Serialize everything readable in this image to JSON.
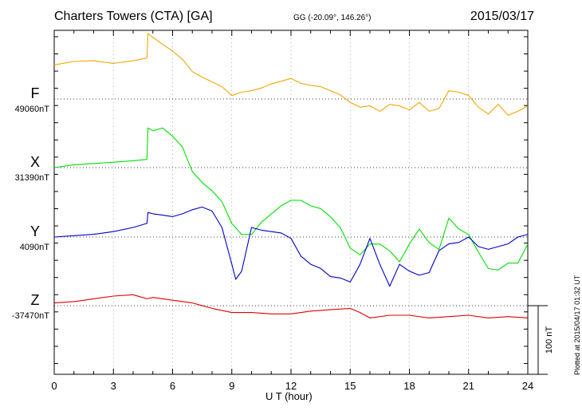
{
  "header": {
    "station": "Charters Towers (CTA)  [GA]",
    "coords": "GG (-20.09°, 146.26°)",
    "date": "2015/03/17"
  },
  "plotted_note": "Plotted at 2015/04/17 01:32 UT",
  "chart_data": {
    "type": "line",
    "xlabel": "U T (hour)",
    "xlim": [
      0,
      24
    ],
    "x_ticks": [
      "0",
      "3",
      "6",
      "9",
      "12",
      "15",
      "18",
      "21",
      "24"
    ],
    "scale_bar_label": "100 nT",
    "grid": "dotted horizontal baselines",
    "series": [
      {
        "name": "F",
        "baseline": "49060nT",
        "color": "#f0a800",
        "x": [
          0,
          1,
          2,
          3,
          4,
          4.7,
          4.75,
          5,
          5.5,
          6,
          6.5,
          7,
          7.5,
          8,
          8.5,
          9,
          9.5,
          10,
          10.5,
          11,
          11.5,
          12,
          12.5,
          13,
          13.5,
          14,
          14.5,
          15,
          15.5,
          16,
          16.5,
          17,
          17.5,
          18,
          18.5,
          19,
          19.5,
          20,
          20.5,
          21,
          21.5,
          22,
          22.5,
          23,
          23.5,
          24
        ],
        "y": [
          50,
          55,
          56,
          52,
          56,
          60,
          96,
          90,
          80,
          70,
          58,
          40,
          32,
          25,
          18,
          5,
          10,
          12,
          16,
          22,
          26,
          30,
          23,
          20,
          18,
          12,
          6,
          -5,
          -12,
          -10,
          -18,
          -8,
          -10,
          -16,
          -5,
          -18,
          -14,
          12,
          10,
          5,
          -12,
          -22,
          -8,
          -24,
          -18,
          -10
        ]
      },
      {
        "name": "X",
        "baseline": "31390nT",
        "color": "#00e000",
        "x": [
          0,
          1,
          2,
          3,
          4,
          4.7,
          4.75,
          5,
          5.5,
          6,
          6.5,
          7,
          7.5,
          8,
          8.5,
          9,
          9.5,
          10,
          10.5,
          11,
          11.5,
          12,
          12.5,
          13,
          13.5,
          14,
          14.5,
          15,
          15.5,
          16,
          16.5,
          17,
          17.5,
          18,
          18.5,
          19,
          19.5,
          20,
          20.5,
          21,
          21.5,
          22,
          22.5,
          23,
          23.5,
          24
        ],
        "y": [
          0,
          4,
          6,
          8,
          10,
          12,
          58,
          54,
          58,
          46,
          30,
          -6,
          -22,
          -34,
          -50,
          -82,
          -98,
          -98,
          -80,
          -68,
          -56,
          -48,
          -48,
          -56,
          -60,
          -72,
          -88,
          -118,
          -128,
          -112,
          -112,
          -122,
          -138,
          -112,
          -90,
          -110,
          -120,
          -74,
          -90,
          -98,
          -124,
          -148,
          -150,
          -140,
          -140,
          -112
        ]
      },
      {
        "name": "Y",
        "baseline": "4090nT",
        "color": "#0000c8",
        "x": [
          0,
          1,
          2,
          3,
          4,
          4.7,
          4.75,
          5,
          5.5,
          6,
          6.5,
          7,
          7.5,
          8,
          8.5,
          9,
          9.2,
          9.5,
          10,
          10.5,
          11,
          11.5,
          12,
          12.5,
          13,
          13.5,
          14,
          14.5,
          15,
          15.5,
          16,
          16.5,
          17,
          17.5,
          18,
          18.5,
          19,
          19.5,
          20,
          20.5,
          21,
          21.5,
          22,
          22.5,
          23,
          23.5,
          24
        ],
        "y": [
          0,
          2,
          4,
          8,
          14,
          20,
          36,
          34,
          32,
          30,
          34,
          40,
          44,
          38,
          14,
          -40,
          -62,
          -50,
          14,
          10,
          8,
          6,
          -2,
          -28,
          -40,
          -46,
          -58,
          -60,
          -66,
          -40,
          -2,
          -40,
          -72,
          -40,
          -50,
          -56,
          -52,
          -20,
          -10,
          -8,
          0,
          -14,
          -18,
          -14,
          -10,
          0,
          4
        ]
      },
      {
        "name": "Z",
        "baseline": "-37470nT",
        "color": "#e00000",
        "x": [
          0,
          1,
          2,
          3,
          4,
          4.7,
          5,
          6,
          7,
          8,
          9,
          10,
          11,
          12,
          13,
          14,
          15,
          15.5,
          16,
          17,
          18,
          19,
          20,
          21,
          22,
          23,
          24
        ],
        "y": [
          4,
          6,
          10,
          14,
          16,
          10,
          12,
          8,
          4,
          -4,
          -10,
          -10,
          -12,
          -12,
          -8,
          -6,
          -4,
          -10,
          -18,
          -14,
          -14,
          -18,
          -16,
          -14,
          -18,
          -16,
          -18
        ]
      }
    ]
  }
}
